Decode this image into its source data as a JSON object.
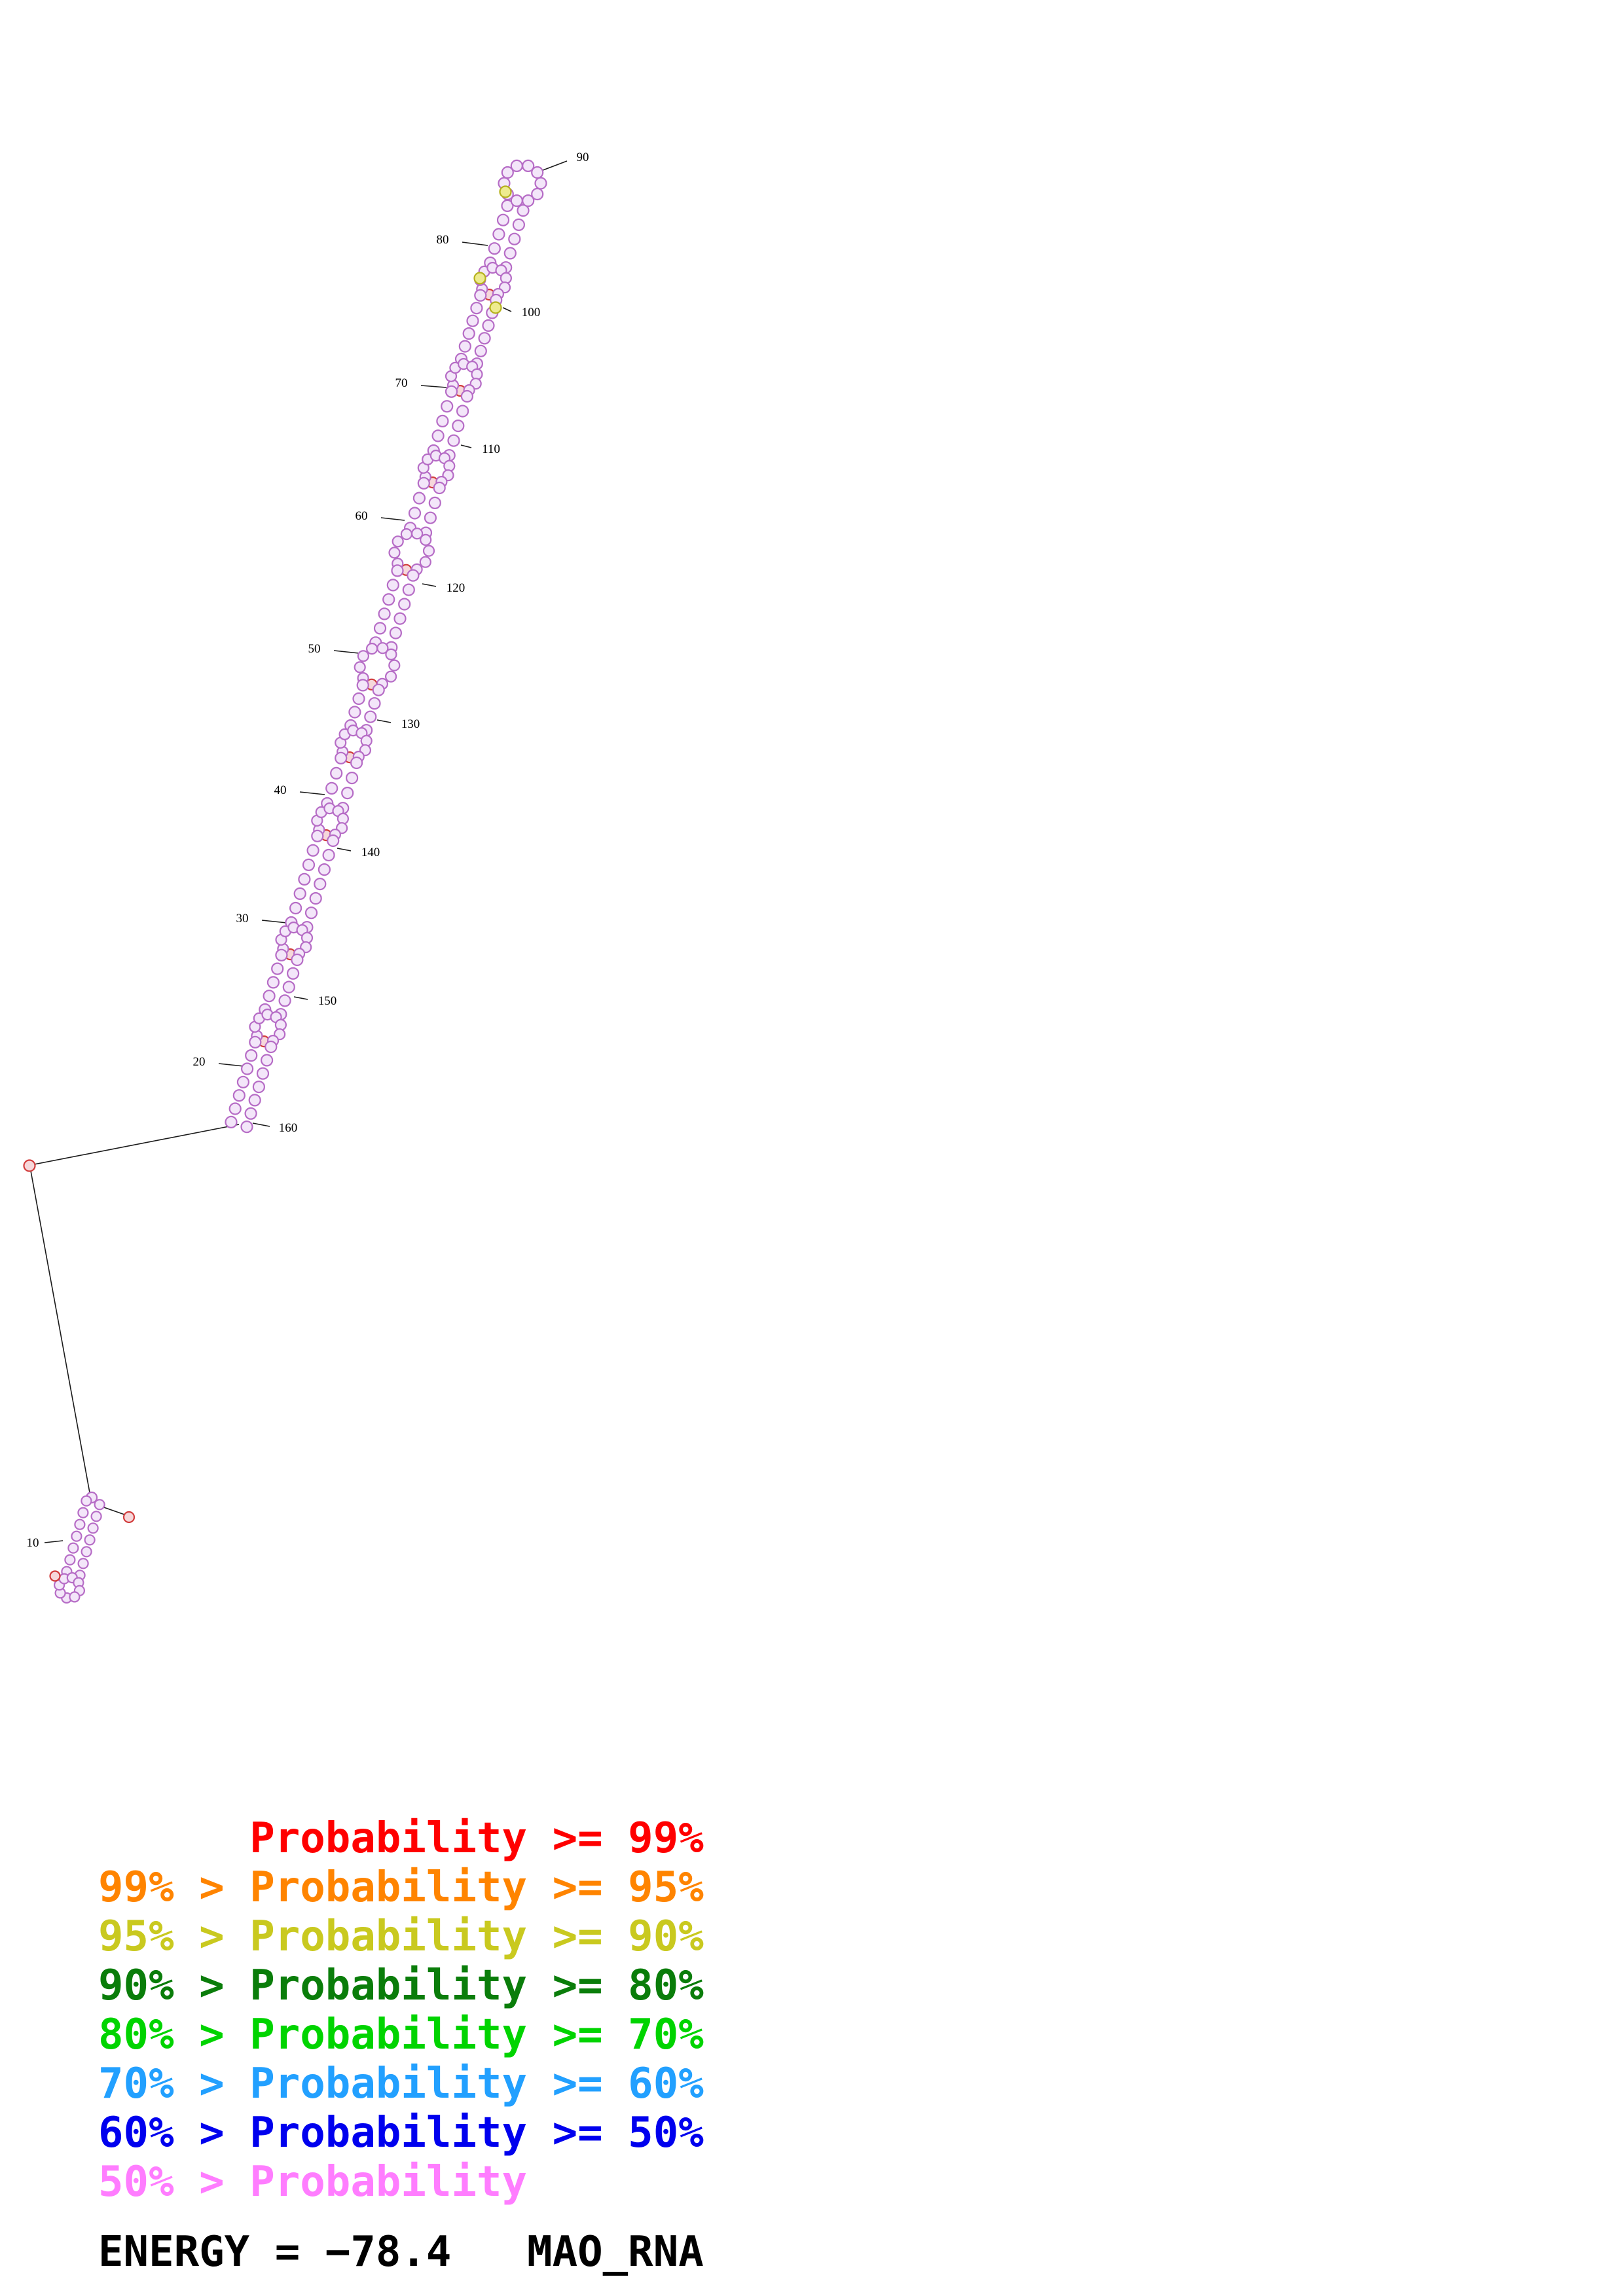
{
  "figure": {
    "position_labels": [
      "90",
      "80",
      "100",
      "70",
      "110",
      "60",
      "120",
      "50",
      "130",
      "40",
      "140",
      "30",
      "150",
      "20",
      "160",
      "10"
    ]
  },
  "legend": {
    "rows": [
      {
        "text": "      Probability >= 99%",
        "color": "#ff0000"
      },
      {
        "text": "99% > Probability >= 95%",
        "color": "#ff8400"
      },
      {
        "text": "95% > Probability >= 90%",
        "color": "#c9c91f"
      },
      {
        "text": "90% > Probability >= 80%",
        "color": "#0a7d0a"
      },
      {
        "text": "80% > Probability >= 70%",
        "color": "#00d400"
      },
      {
        "text": "70% > Probability >= 60%",
        "color": "#22a0ff"
      },
      {
        "text": "60% > Probability >= 50%",
        "color": "#0000ee"
      },
      {
        "text": "50% > Probability",
        "color": "#ff7dff"
      }
    ]
  },
  "footer": {
    "energy_text": "ENERGY = −78.4   MAO_RNA"
  }
}
